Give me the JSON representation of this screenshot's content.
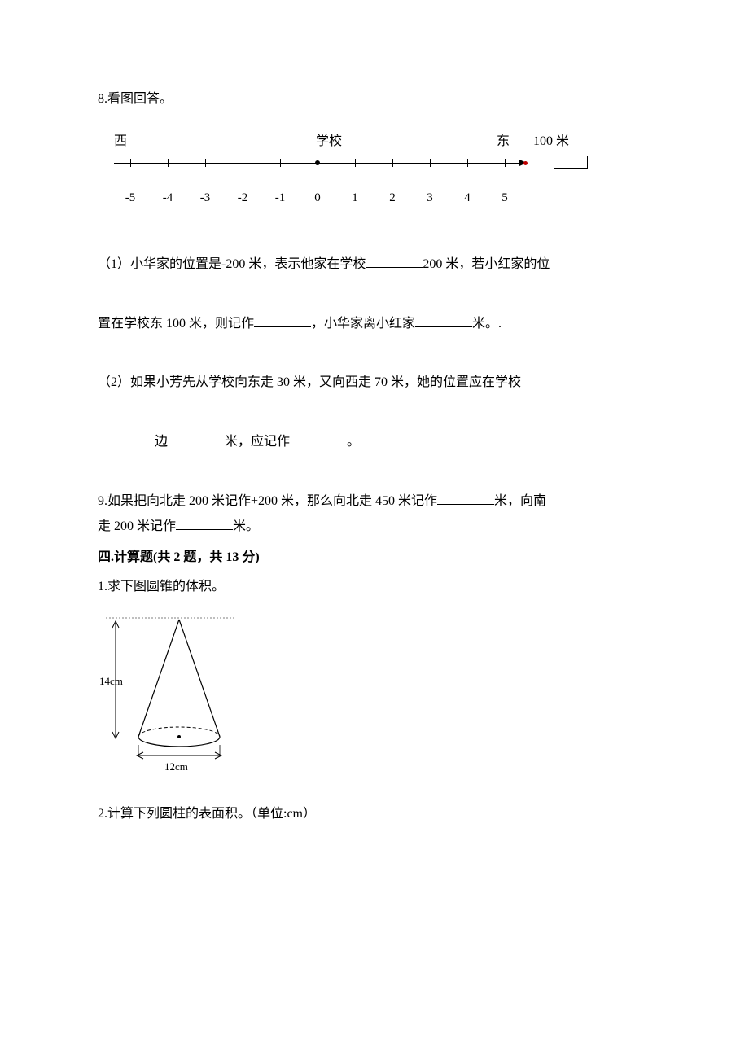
{
  "q8": {
    "title": "8.看图回答。",
    "numline": {
      "west": "西",
      "school": "学校",
      "east": "东",
      "scale_label": "100 米",
      "ticks": [
        -5,
        -4,
        -3,
        -2,
        -1,
        0,
        1,
        2,
        3,
        4,
        5
      ],
      "tick_labels": [
        "-5",
        "-4",
        "-3",
        "-2",
        "-1",
        "0",
        "1",
        "2",
        "3",
        "4",
        "5"
      ],
      "axis_color": "#000000",
      "arrow_color": "#000000",
      "end_dot_color": "#c00000"
    },
    "part1_a": "（1）小华家的位置是-200 米，表示他家在学校",
    "part1_b": "200 米，若小红家的位",
    "part1_c": "置在学校东 100 米，则记作",
    "part1_d": "，小华家离小红家",
    "part1_e": "米。.",
    "part2_a": "（2）如果小芳先从学校向东走 30 米，又向西走 70 米，她的位置应在学校",
    "part2_b": "边",
    "part2_c": "米，应记作",
    "part2_d": "。"
  },
  "q9": {
    "line1_a": "9.如果把向北走 200 米记作+200 米，那么向北走 450 米记作",
    "line1_b": "米，向南",
    "line2_a": "走 200 米记作",
    "line2_b": "米。"
  },
  "section4": {
    "heading": "四.计算题(共 2 题，共 13 分)"
  },
  "q4_1": {
    "title": "1.求下图圆锥的体积。",
    "cone": {
      "height_label": "14cm",
      "diameter_label": "12cm",
      "stroke": "#000000",
      "dash": "3,3"
    }
  },
  "q4_2": {
    "title": "2.计算下列圆柱的表面积。（单位:cm）"
  }
}
